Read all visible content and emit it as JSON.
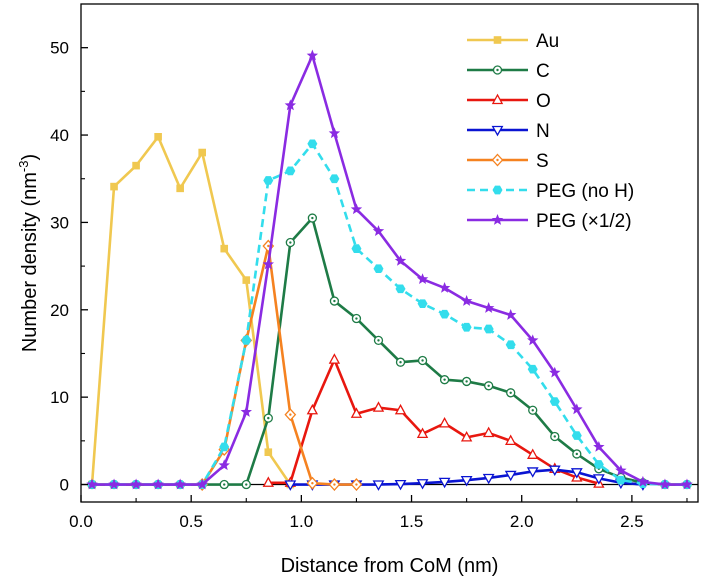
{
  "chart_data": {
    "type": "line",
    "title": "",
    "xlabel": "Distance from CoM (nm)",
    "ylabel_main": "Number density (nm",
    "ylabel_sup": "-3",
    "ylabel_close": ")",
    "xlim": [
      0.0,
      2.8
    ],
    "ylim": [
      -2,
      55
    ],
    "xticks": [
      0.0,
      0.5,
      1.0,
      1.5,
      2.0,
      2.5
    ],
    "xtick_labels": [
      "0.0",
      "0.5",
      "1.0",
      "1.5",
      "2.0",
      "2.5"
    ],
    "yticks": [
      0,
      10,
      20,
      30,
      40,
      50
    ],
    "ytick_labels": [
      "0",
      "10",
      "20",
      "30",
      "40",
      "50"
    ],
    "zero_line": true,
    "legend_position": "top-right",
    "series": [
      {
        "name": "Au",
        "color": "#f0c850",
        "marker": "square",
        "dash": "solid",
        "x": [
          0.05,
          0.15,
          0.25,
          0.35,
          0.45,
          0.55,
          0.65,
          0.75,
          0.85,
          0.95
        ],
        "y": [
          0,
          34.1,
          36.5,
          39.8,
          33.9,
          38.0,
          27.0,
          23.4,
          3.7,
          0
        ]
      },
      {
        "name": "C",
        "color": "#1e7b46",
        "marker": "circle-dot",
        "dash": "solid",
        "x": [
          0.05,
          0.15,
          0.25,
          0.35,
          0.45,
          0.55,
          0.65,
          0.75,
          0.85,
          0.95,
          1.05,
          1.15,
          1.25,
          1.35,
          1.45,
          1.55,
          1.65,
          1.75,
          1.85,
          1.95,
          2.05,
          2.15,
          2.25,
          2.35,
          2.45,
          2.55,
          2.65,
          2.75
        ],
        "y": [
          0,
          0,
          0,
          0,
          0,
          0,
          0,
          0,
          7.6,
          27.7,
          30.5,
          21.0,
          19.0,
          16.5,
          14.0,
          14.2,
          12.0,
          11.8,
          11.3,
          10.5,
          8.5,
          5.5,
          3.5,
          1.8,
          0.8,
          0.2,
          0,
          0
        ]
      },
      {
        "name": "O",
        "color": "#e8170f",
        "marker": "triangle-up",
        "dash": "solid",
        "x": [
          0.85,
          0.95,
          1.05,
          1.15,
          1.25,
          1.35,
          1.45,
          1.55,
          1.65,
          1.75,
          1.85,
          1.95,
          2.05,
          2.15,
          2.25,
          2.35
        ],
        "y": [
          0.2,
          0.2,
          8.5,
          14.3,
          8.1,
          8.8,
          8.5,
          5.8,
          7.0,
          5.4,
          5.9,
          5.0,
          3.4,
          1.8,
          0.8,
          0.1
        ]
      },
      {
        "name": "N",
        "color": "#0a14d2",
        "marker": "triangle-down",
        "dash": "solid",
        "x": [
          0.95,
          1.05,
          1.15,
          1.25,
          1.35,
          1.45,
          1.55,
          1.65,
          1.75,
          1.85,
          1.95,
          2.05,
          2.15,
          2.25,
          2.35,
          2.45,
          2.55
        ],
        "y": [
          0,
          0,
          0,
          0,
          0,
          0.05,
          0.15,
          0.3,
          0.5,
          0.75,
          1.1,
          1.5,
          1.7,
          1.4,
          0.7,
          0.2,
          0
        ]
      },
      {
        "name": "S",
        "color": "#f58220",
        "marker": "diamond-dot",
        "dash": "solid",
        "x": [
          0.55,
          0.65,
          0.75,
          0.85,
          0.95,
          1.05,
          1.15,
          1.25
        ],
        "y": [
          0,
          4.0,
          16.5,
          27.3,
          8.0,
          0.15,
          0,
          0
        ]
      },
      {
        "name": "PEG (no H)",
        "color": "#33ddec",
        "marker": "hexagon",
        "dash": "dashed",
        "x": [
          0.05,
          0.15,
          0.25,
          0.35,
          0.45,
          0.55,
          0.65,
          0.75,
          0.85,
          0.95,
          1.05,
          1.15,
          1.25,
          1.35,
          1.45,
          1.55,
          1.65,
          1.75,
          1.85,
          1.95,
          2.05,
          2.15,
          2.25,
          2.35,
          2.45,
          2.55,
          2.65,
          2.75
        ],
        "y": [
          0,
          0,
          0,
          0,
          0,
          0,
          4.3,
          16.5,
          34.8,
          35.9,
          39.0,
          35.0,
          27.0,
          24.7,
          22.4,
          20.7,
          19.5,
          18.0,
          17.8,
          16.0,
          13.2,
          9.5,
          5.6,
          2.3,
          0.5,
          0.1,
          0,
          0
        ]
      },
      {
        "name": "PEG (×1/2)",
        "color": "#8a2be2",
        "marker": "star",
        "dash": "solid",
        "x": [
          0.05,
          0.15,
          0.25,
          0.35,
          0.45,
          0.55,
          0.65,
          0.75,
          0.85,
          0.95,
          1.05,
          1.15,
          1.25,
          1.35,
          1.45,
          1.55,
          1.65,
          1.75,
          1.85,
          1.95,
          2.05,
          2.15,
          2.25,
          2.35,
          2.45,
          2.55,
          2.65,
          2.75
        ],
        "y": [
          0,
          0,
          0,
          0,
          0,
          0,
          2.2,
          8.3,
          25.2,
          43.4,
          49.1,
          40.2,
          31.5,
          29.0,
          25.6,
          23.5,
          22.5,
          21.0,
          20.2,
          19.4,
          16.5,
          12.8,
          8.6,
          4.3,
          1.6,
          0.3,
          0,
          0
        ]
      }
    ]
  }
}
